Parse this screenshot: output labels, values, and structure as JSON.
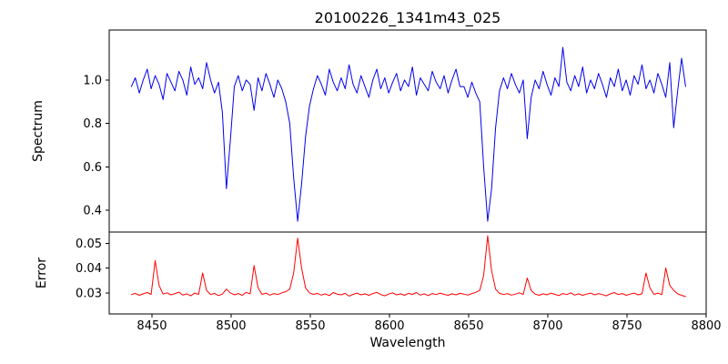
{
  "chart_data": {
    "type": "line",
    "title": "20100226_1341m43_025",
    "xlabel": "Wavelength",
    "xlim": [
      8423,
      8800
    ],
    "xticks": [
      8450,
      8500,
      8550,
      8600,
      8650,
      8700,
      8750,
      8800
    ],
    "xtick_labels": [
      "8450",
      "8500",
      "8550",
      "8600",
      "8650",
      "8700",
      "8750",
      "8800"
    ],
    "grid": false,
    "legend": false,
    "x": [
      8437,
      8439.5,
      8442,
      8444.5,
      8447,
      8449.5,
      8452,
      8454.5,
      8457,
      8459.5,
      8462,
      8464.5,
      8467,
      8469.5,
      8472,
      8474.5,
      8477,
      8479.5,
      8482,
      8484.5,
      8487,
      8489.5,
      8492,
      8494.5,
      8497,
      8499.5,
      8502,
      8504.5,
      8507,
      8509.5,
      8512,
      8514.5,
      8517,
      8519.5,
      8522,
      8524.5,
      8527,
      8529.5,
      8532,
      8534.5,
      8537,
      8539.5,
      8542,
      8544.5,
      8547,
      8549.5,
      8552,
      8554.5,
      8557,
      8559.5,
      8562,
      8564.5,
      8567,
      8569.5,
      8572,
      8574.5,
      8577,
      8579.5,
      8582,
      8584.5,
      8587,
      8589.5,
      8592,
      8594.5,
      8597,
      8599.5,
      8602,
      8604.5,
      8607,
      8609.5,
      8612,
      8614.5,
      8617,
      8619.5,
      8622,
      8624.5,
      8627,
      8629.5,
      8632,
      8634.5,
      8637,
      8639.5,
      8642,
      8644.5,
      8647,
      8649.5,
      8652,
      8654.5,
      8657,
      8659.5,
      8662,
      8664.5,
      8667,
      8669.5,
      8672,
      8674.5,
      8677,
      8679.5,
      8682,
      8684.5,
      8687,
      8689.5,
      8692,
      8694.5,
      8697,
      8699.5,
      8702,
      8704.5,
      8707,
      8709.5,
      8712,
      8714.5,
      8717,
      8719.5,
      8722,
      8724.5,
      8727,
      8729.5,
      8732,
      8734.5,
      8737,
      8739.5,
      8742,
      8744.5,
      8747,
      8749.5,
      8752,
      8754.5,
      8757,
      8759.5,
      8762,
      8764.5,
      8767,
      8769.5,
      8772,
      8774.5,
      8777,
      8779.5,
      8782,
      8784.5,
      8787
    ],
    "panels": [
      {
        "name": "spectrum",
        "ylabel": "Spectrum",
        "color": "#0000ee",
        "ylim": [
          0.3,
          1.23
        ],
        "yticks": [
          0.4,
          0.6,
          0.8,
          1.0
        ],
        "ytick_labels": [
          "0.4",
          "0.6",
          "0.8",
          "1.0"
        ],
        "absorption_line_centers": [
          8498,
          8542,
          8662
        ],
        "y": [
          0.97,
          1.01,
          0.94,
          1.0,
          1.05,
          0.96,
          1.02,
          0.98,
          0.91,
          1.03,
          0.99,
          0.95,
          1.04,
          1.0,
          0.93,
          1.06,
          0.98,
          1.01,
          0.96,
          1.08,
          1.0,
          0.94,
          0.99,
          0.85,
          0.5,
          0.72,
          0.97,
          1.02,
          0.95,
          1.0,
          0.98,
          0.86,
          1.01,
          0.95,
          1.03,
          0.98,
          0.92,
          1.0,
          0.96,
          0.9,
          0.8,
          0.55,
          0.35,
          0.52,
          0.74,
          0.88,
          0.96,
          1.02,
          0.98,
          0.93,
          1.05,
          0.99,
          0.95,
          1.01,
          0.96,
          1.07,
          0.98,
          0.94,
          1.02,
          0.97,
          0.92,
          1.0,
          1.05,
          0.96,
          1.01,
          0.94,
          0.99,
          1.03,
          0.95,
          1.0,
          0.97,
          1.06,
          0.93,
          1.01,
          0.98,
          0.95,
          1.04,
          0.99,
          0.96,
          1.02,
          0.94,
          1.0,
          1.05,
          0.97,
          0.97,
          0.92,
          0.99,
          0.94,
          0.9,
          0.6,
          0.35,
          0.5,
          0.78,
          0.95,
          1.01,
          0.96,
          1.03,
          0.98,
          0.94,
          1.0,
          0.73,
          0.92,
          1.0,
          0.96,
          1.04,
          0.98,
          0.93,
          1.01,
          0.97,
          1.15,
          0.99,
          0.95,
          1.02,
          0.97,
          1.06,
          0.94,
          1.0,
          0.96,
          1.03,
          0.98,
          0.92,
          1.01,
          0.97,
          1.05,
          0.95,
          1.0,
          0.93,
          1.02,
          0.98,
          1.07,
          0.96,
          1.0,
          0.94,
          1.03,
          0.98,
          0.92,
          1.08,
          0.78,
          0.95,
          1.1,
          0.97
        ]
      },
      {
        "name": "error",
        "ylabel": "Error",
        "color": "#ff0000",
        "ylim": [
          0.0215,
          0.0545
        ],
        "yticks": [
          0.03,
          0.04,
          0.05
        ],
        "ytick_labels": [
          "0.03",
          "0.04",
          "0.05"
        ],
        "y": [
          0.0293,
          0.0298,
          0.029,
          0.0296,
          0.0301,
          0.0294,
          0.043,
          0.033,
          0.0295,
          0.03,
          0.0292,
          0.0297,
          0.0303,
          0.0291,
          0.0296,
          0.0288,
          0.0299,
          0.0294,
          0.038,
          0.031,
          0.0293,
          0.0298,
          0.0289,
          0.0295,
          0.0315,
          0.03,
          0.0292,
          0.0297,
          0.029,
          0.0302,
          0.0296,
          0.041,
          0.032,
          0.0294,
          0.0299,
          0.0291,
          0.0297,
          0.0293,
          0.03,
          0.0305,
          0.0315,
          0.038,
          0.052,
          0.04,
          0.032,
          0.03,
          0.0294,
          0.0298,
          0.0291,
          0.0296,
          0.0289,
          0.0301,
          0.0295,
          0.0292,
          0.0298,
          0.0287,
          0.0294,
          0.0299,
          0.0292,
          0.0296,
          0.029,
          0.0297,
          0.0302,
          0.0293,
          0.0288,
          0.0295,
          0.03,
          0.0292,
          0.0296,
          0.029,
          0.0298,
          0.0294,
          0.0301,
          0.0291,
          0.0296,
          0.0289,
          0.0297,
          0.0293,
          0.0299,
          0.0294,
          0.029,
          0.0296,
          0.0292,
          0.0298,
          0.0295,
          0.0291,
          0.0297,
          0.0302,
          0.031,
          0.037,
          0.053,
          0.039,
          0.0315,
          0.0298,
          0.0293,
          0.0297,
          0.0291,
          0.0295,
          0.03,
          0.0294,
          0.036,
          0.031,
          0.0295,
          0.029,
          0.0296,
          0.0292,
          0.0299,
          0.0294,
          0.0289,
          0.0297,
          0.0293,
          0.03,
          0.0291,
          0.0296,
          0.029,
          0.0295,
          0.0299,
          0.0292,
          0.0297,
          0.0293,
          0.0288,
          0.0296,
          0.0301,
          0.0293,
          0.0297,
          0.029,
          0.0295,
          0.0299,
          0.0292,
          0.0296,
          0.038,
          0.032,
          0.0294,
          0.0299,
          0.0293,
          0.04,
          0.033,
          0.031,
          0.0296,
          0.029,
          0.0285
        ]
      }
    ]
  }
}
